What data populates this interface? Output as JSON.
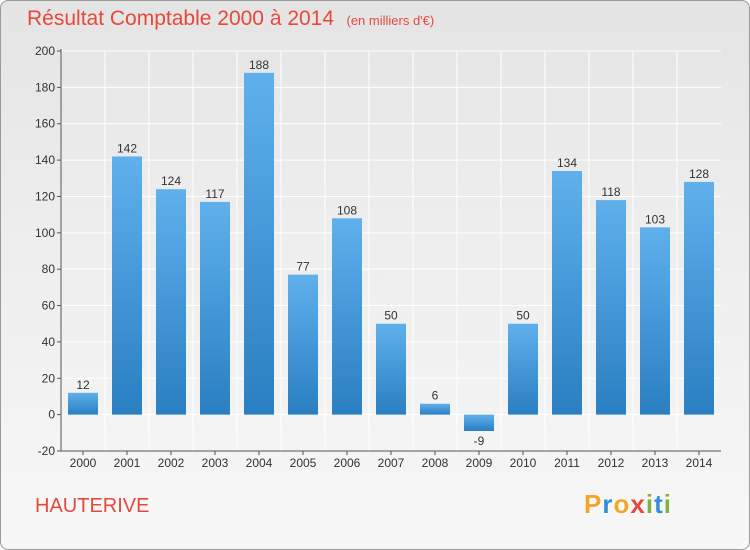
{
  "header": {
    "title": "Résultat Comptable 2000 à 2014",
    "subtitle": "(en milliers d'€)"
  },
  "commune": "HAUTERIVE",
  "logo": {
    "text": "Proxiti",
    "letters": [
      {
        "char": "P",
        "color": "#f2a72b"
      },
      {
        "char": "r",
        "color": "#2f8fd8"
      },
      {
        "char": "o",
        "color": "#f2a72b"
      },
      {
        "char": "x",
        "color": "#e5493a"
      },
      {
        "char": "i",
        "color": "#7cb342"
      },
      {
        "char": "t",
        "color": "#2f8fd8"
      },
      {
        "char": "i",
        "color": "#7cb342"
      }
    ]
  },
  "colors": {
    "bar_top": "#5fb0ec",
    "bar_bottom": "#2a7fc2",
    "title": "#e5493a",
    "axis": "#555555",
    "grid": "#ffffff"
  },
  "chart_data": {
    "type": "bar",
    "categories": [
      "2000",
      "2001",
      "2002",
      "2003",
      "2004",
      "2005",
      "2006",
      "2007",
      "2008",
      "2009",
      "2010",
      "2011",
      "2012",
      "2013",
      "2014"
    ],
    "values": [
      12,
      142,
      124,
      117,
      188,
      77,
      108,
      50,
      6,
      -9,
      50,
      134,
      118,
      103,
      128
    ],
    "title": "Résultat Comptable 2000 à 2014",
    "subtitle": "(en milliers d'€)",
    "xlabel": "",
    "ylabel": "",
    "ylim": [
      -20,
      200
    ],
    "yticks": [
      -20,
      0,
      20,
      40,
      60,
      80,
      100,
      120,
      140,
      160,
      180,
      200
    ],
    "grid": true,
    "legend": "none"
  }
}
